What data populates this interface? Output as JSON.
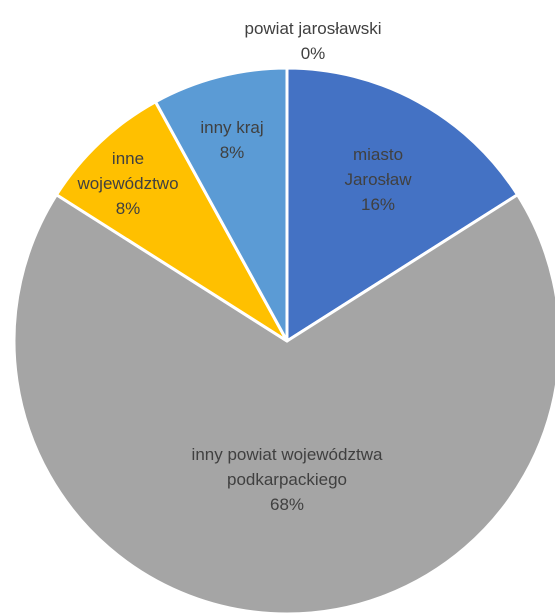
{
  "chart_data": {
    "type": "pie",
    "slices": [
      {
        "label_lines": [
          "powiat jarosławski",
          "0%"
        ],
        "value": 0,
        "color": "#4472C4"
      },
      {
        "label_lines": [
          "miasto",
          "Jarosław",
          "16%"
        ],
        "value": 16,
        "color": "#4472C4"
      },
      {
        "label_lines": [
          "inny powiat województwa",
          "podkarpackiego",
          "68%"
        ],
        "value": 68,
        "color": "#A5A5A5"
      },
      {
        "label_lines": [
          "inne",
          "województwo",
          "8%"
        ],
        "value": 8,
        "color": "#FFC000"
      },
      {
        "label_lines": [
          "inny kraj",
          "8%"
        ],
        "value": 8,
        "color": "#5B9BD5"
      }
    ],
    "title": "",
    "legend": "none",
    "start": "top",
    "direction": "clockwise"
  }
}
